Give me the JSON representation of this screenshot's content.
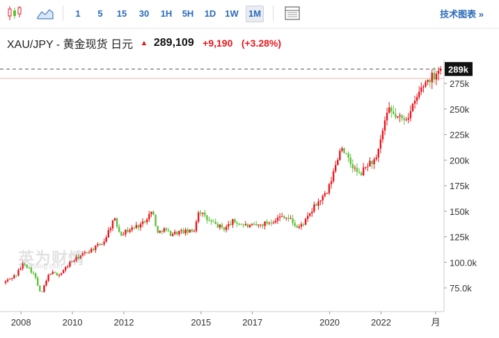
{
  "toolbar": {
    "icons": [
      "candlestick-icon",
      "area-chart-icon",
      "table-icon"
    ],
    "intervals": [
      "1",
      "5",
      "15",
      "30",
      "1H",
      "5H",
      "1D",
      "1W",
      "1M"
    ],
    "active_interval": "1M",
    "tech_chart_label": "技术图表 »"
  },
  "header": {
    "symbol": "XAU/JPY - 黄金现货 日元",
    "price": "289,109",
    "change": "+9,190",
    "change_pct": "(+3.28%)"
  },
  "watermark": {
    "brand": "英为财情",
    "sub": "Investing.com"
  },
  "colors": {
    "up": "#e8141c",
    "down": "#5bc236",
    "last_price_bg": "#111111",
    "ref_line": "#f2b8a8"
  },
  "chart_data": {
    "type": "candlestick",
    "interval": "1M",
    "x_range": [
      2007.4,
      2024.45
    ],
    "ylim": [
      60000,
      300000
    ],
    "y_ticks": [
      75000,
      100000,
      125000,
      150000,
      175000,
      200000,
      225000,
      250000,
      275000
    ],
    "y_tick_labels": [
      "75.0k",
      "100.0k",
      "125k",
      "150k",
      "175k",
      "200k",
      "225k",
      "250k",
      "275k"
    ],
    "x_ticks": [
      2008,
      2010,
      2012,
      2015,
      2017,
      2020,
      2022
    ],
    "x_tick_labels": [
      "2008",
      "2010",
      "2012",
      "2015",
      "2017",
      "2020",
      "2022"
    ],
    "x_end_label": "月",
    "last_price": 289109,
    "last_price_label": "289k",
    "reference_price": 280000,
    "anchors": [
      [
        2007.4,
        80000
      ],
      [
        2007.9,
        88000
      ],
      [
        2008.2,
        100000
      ],
      [
        2008.6,
        88000
      ],
      [
        2008.85,
        68000
      ],
      [
        2009.2,
        90000
      ],
      [
        2009.6,
        88000
      ],
      [
        2010.0,
        100000
      ],
      [
        2010.5,
        108000
      ],
      [
        2011.0,
        115000
      ],
      [
        2011.3,
        120000
      ],
      [
        2011.7,
        143000
      ],
      [
        2011.95,
        128000
      ],
      [
        2012.3,
        132000
      ],
      [
        2012.8,
        138000
      ],
      [
        2013.0,
        145000
      ],
      [
        2013.2,
        150000
      ],
      [
        2013.4,
        128000
      ],
      [
        2013.6,
        133000
      ],
      [
        2013.9,
        128000
      ],
      [
        2014.3,
        130000
      ],
      [
        2014.8,
        130000
      ],
      [
        2015.0,
        152000
      ],
      [
        2015.3,
        142000
      ],
      [
        2015.7,
        136000
      ],
      [
        2016.0,
        133000
      ],
      [
        2016.3,
        140000
      ],
      [
        2016.7,
        137000
      ],
      [
        2016.95,
        135000
      ],
      [
        2017.3,
        136000
      ],
      [
        2017.8,
        140000
      ],
      [
        2018.3,
        146000
      ],
      [
        2018.6,
        141000
      ],
      [
        2018.85,
        133000
      ],
      [
        2019.2,
        142000
      ],
      [
        2019.5,
        155000
      ],
      [
        2019.8,
        163000
      ],
      [
        2020.0,
        168000
      ],
      [
        2020.2,
        185000
      ],
      [
        2020.55,
        215000
      ],
      [
        2020.8,
        200000
      ],
      [
        2021.0,
        193000
      ],
      [
        2021.25,
        185000
      ],
      [
        2021.6,
        197000
      ],
      [
        2021.9,
        200000
      ],
      [
        2022.0,
        210000
      ],
      [
        2022.2,
        235000
      ],
      [
        2022.4,
        248000
      ],
      [
        2022.7,
        242000
      ],
      [
        2022.9,
        240000
      ],
      [
        2023.2,
        245000
      ],
      [
        2023.6,
        268000
      ],
      [
        2023.85,
        278000
      ],
      [
        2024.1,
        282000
      ],
      [
        2024.3,
        289109
      ]
    ]
  }
}
